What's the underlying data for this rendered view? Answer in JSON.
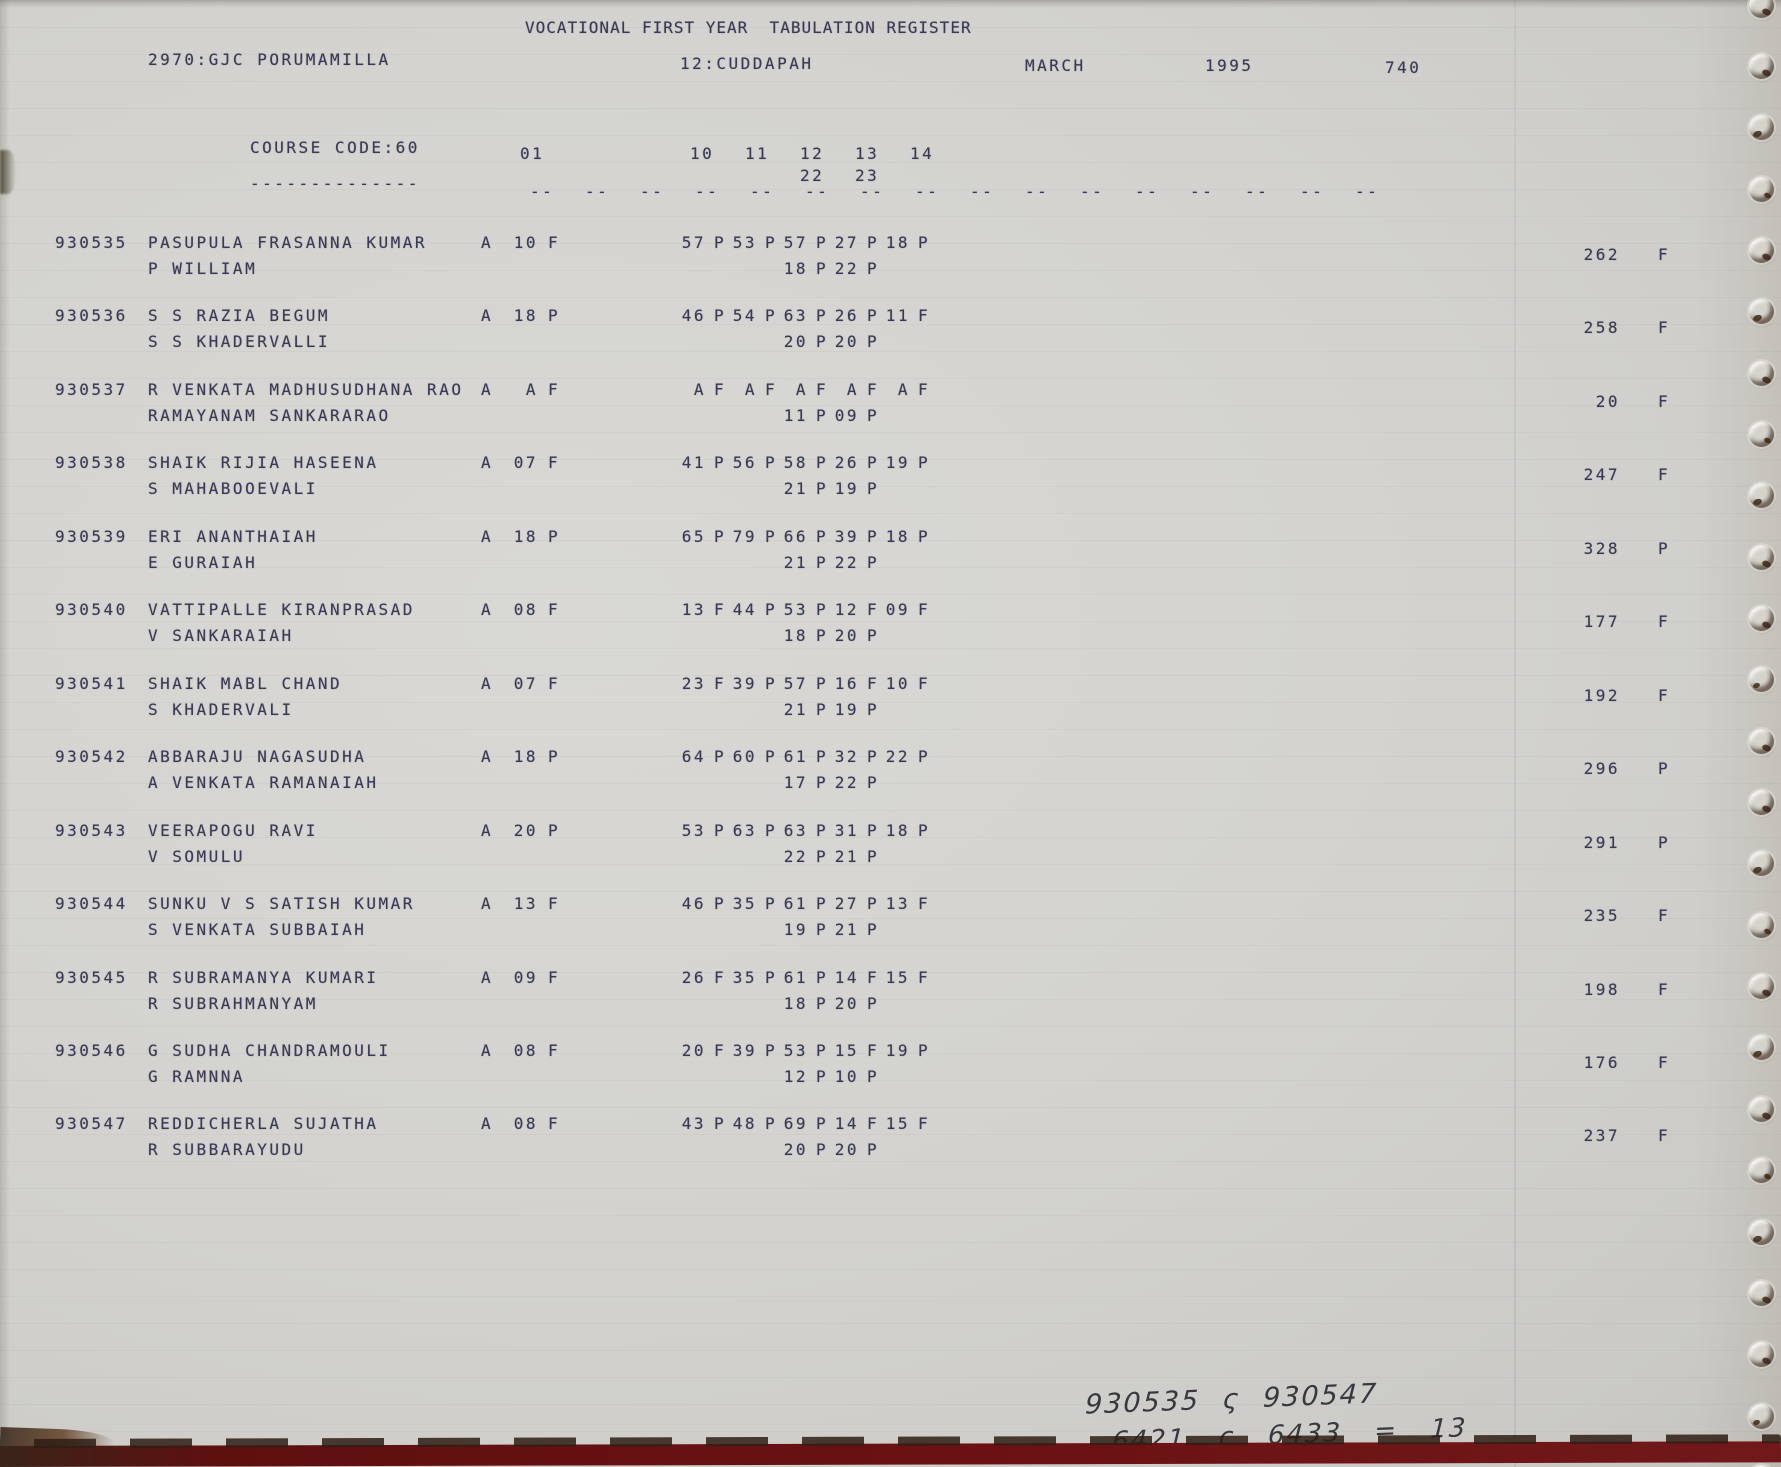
{
  "page": {
    "title": "VOCATIONAL FIRST YEAR  TABULATION REGISTER",
    "college": "2970:GJC PORUMAMILLA",
    "district": "12:CUDDAPAH",
    "month": "MARCH",
    "year": "1995",
    "page_number": "740"
  },
  "course": {
    "label": "COURSE CODE:60",
    "underline": "--------------",
    "columns": [
      "01",
      "10",
      "11",
      "12",
      "13",
      "14"
    ],
    "sub_columns": [
      "22",
      "23"
    ],
    "ruler_dashes": [
      "--",
      "--",
      "--",
      "--",
      "--",
      "--",
      "--",
      "--",
      "--",
      "--",
      "--",
      "--",
      "--",
      "--",
      "--",
      "--"
    ]
  },
  "register": {
    "rows": [
      {
        "reg_no": "930535",
        "name": "PASUPULA FRASANNA KUMAR",
        "father_name": "P WILLIAM",
        "attendance": "A",
        "first_subject": {
          "marks": "10",
          "result": "F"
        },
        "subjects_line1": [
          [
            "57",
            "P"
          ],
          [
            "53",
            "P"
          ],
          [
            "57",
            "P"
          ],
          [
            "27",
            "P"
          ],
          [
            "18",
            "P"
          ]
        ],
        "subjects_line2": [
          [
            "18",
            "P"
          ],
          [
            "22",
            "P"
          ]
        ],
        "total": "262",
        "overall_result": "F"
      },
      {
        "reg_no": "930536",
        "name": "S S RAZIA BEGUM",
        "father_name": "S S KHADERVALLI",
        "attendance": "A",
        "first_subject": {
          "marks": "18",
          "result": "P"
        },
        "subjects_line1": [
          [
            "46",
            "P"
          ],
          [
            "54",
            "P"
          ],
          [
            "63",
            "P"
          ],
          [
            "26",
            "P"
          ],
          [
            "11",
            "F"
          ]
        ],
        "subjects_line2": [
          [
            "20",
            "P"
          ],
          [
            "20",
            "P"
          ]
        ],
        "total": "258",
        "overall_result": "F"
      },
      {
        "reg_no": "930537",
        "name": "R VENKATA MADHUSUDHANA RAO",
        "father_name": "RAMAYANAM SANKARARAO",
        "attendance": "A",
        "first_subject": {
          "marks": "A",
          "result": "F"
        },
        "subjects_line1": [
          [
            "A",
            "F"
          ],
          [
            "A",
            "F"
          ],
          [
            "A",
            "F"
          ],
          [
            "A",
            "F"
          ],
          [
            "A",
            "F"
          ]
        ],
        "subjects_line2": [
          [
            "11",
            "P"
          ],
          [
            "09",
            "P"
          ]
        ],
        "total": "20",
        "overall_result": "F"
      },
      {
        "reg_no": "930538",
        "name": "SHAIK RIJIA HASEENA",
        "father_name": "S MAHABOOEVALI",
        "attendance": "A",
        "first_subject": {
          "marks": "07",
          "result": "F"
        },
        "subjects_line1": [
          [
            "41",
            "P"
          ],
          [
            "56",
            "P"
          ],
          [
            "58",
            "P"
          ],
          [
            "26",
            "P"
          ],
          [
            "19",
            "P"
          ]
        ],
        "subjects_line2": [
          [
            "21",
            "P"
          ],
          [
            "19",
            "P"
          ]
        ],
        "total": "247",
        "overall_result": "F"
      },
      {
        "reg_no": "930539",
        "name": "ERI ANANTHAIAH",
        "father_name": "E GURAIAH",
        "attendance": "A",
        "first_subject": {
          "marks": "18",
          "result": "P"
        },
        "subjects_line1": [
          [
            "65",
            "P"
          ],
          [
            "79",
            "P"
          ],
          [
            "66",
            "P"
          ],
          [
            "39",
            "P"
          ],
          [
            "18",
            "P"
          ]
        ],
        "subjects_line2": [
          [
            "21",
            "P"
          ],
          [
            "22",
            "P"
          ]
        ],
        "total": "328",
        "overall_result": "P"
      },
      {
        "reg_no": "930540",
        "name": "VATTIPALLE KIRANPRASAD",
        "father_name": "V SANKARAIAH",
        "attendance": "A",
        "first_subject": {
          "marks": "08",
          "result": "F"
        },
        "subjects_line1": [
          [
            "13",
            "F"
          ],
          [
            "44",
            "P"
          ],
          [
            "53",
            "P"
          ],
          [
            "12",
            "F"
          ],
          [
            "09",
            "F"
          ]
        ],
        "subjects_line2": [
          [
            "18",
            "P"
          ],
          [
            "20",
            "P"
          ]
        ],
        "total": "177",
        "overall_result": "F"
      },
      {
        "reg_no": "930541",
        "name": "SHAIK MABL CHAND",
        "father_name": "S KHADERVALI",
        "attendance": "A",
        "first_subject": {
          "marks": "07",
          "result": "F"
        },
        "subjects_line1": [
          [
            "23",
            "F"
          ],
          [
            "39",
            "P"
          ],
          [
            "57",
            "P"
          ],
          [
            "16",
            "F"
          ],
          [
            "10",
            "F"
          ]
        ],
        "subjects_line2": [
          [
            "21",
            "P"
          ],
          [
            "19",
            "P"
          ]
        ],
        "total": "192",
        "overall_result": "F"
      },
      {
        "reg_no": "930542",
        "name": "ABBARAJU NAGASUDHA",
        "father_name": "A VENKATA RAMANAIAH",
        "attendance": "A",
        "first_subject": {
          "marks": "18",
          "result": "P"
        },
        "subjects_line1": [
          [
            "64",
            "P"
          ],
          [
            "60",
            "P"
          ],
          [
            "61",
            "P"
          ],
          [
            "32",
            "P"
          ],
          [
            "22",
            "P"
          ]
        ],
        "subjects_line2": [
          [
            "17",
            "P"
          ],
          [
            "22",
            "P"
          ]
        ],
        "total": "296",
        "overall_result": "P"
      },
      {
        "reg_no": "930543",
        "name": "VEERAPOGU RAVI",
        "father_name": "V SOMULU",
        "attendance": "A",
        "first_subject": {
          "marks": "20",
          "result": "P"
        },
        "subjects_line1": [
          [
            "53",
            "P"
          ],
          [
            "63",
            "P"
          ],
          [
            "63",
            "P"
          ],
          [
            "31",
            "P"
          ],
          [
            "18",
            "P"
          ]
        ],
        "subjects_line2": [
          [
            "22",
            "P"
          ],
          [
            "21",
            "P"
          ]
        ],
        "total": "291",
        "overall_result": "P"
      },
      {
        "reg_no": "930544",
        "name": "SUNKU V S SATISH KUMAR",
        "father_name": "S VENKATA SUBBAIAH",
        "attendance": "A",
        "first_subject": {
          "marks": "13",
          "result": "F"
        },
        "subjects_line1": [
          [
            "46",
            "P"
          ],
          [
            "35",
            "P"
          ],
          [
            "61",
            "P"
          ],
          [
            "27",
            "P"
          ],
          [
            "13",
            "F"
          ]
        ],
        "subjects_line2": [
          [
            "19",
            "P"
          ],
          [
            "21",
            "P"
          ]
        ],
        "total": "235",
        "overall_result": "F"
      },
      {
        "reg_no": "930545",
        "name": "R SUBRAMANYA KUMARI",
        "father_name": "R SUBRAHMANYAM",
        "attendance": "A",
        "first_subject": {
          "marks": "09",
          "result": "F"
        },
        "subjects_line1": [
          [
            "26",
            "F"
          ],
          [
            "35",
            "P"
          ],
          [
            "61",
            "P"
          ],
          [
            "14",
            "F"
          ],
          [
            "15",
            "F"
          ]
        ],
        "subjects_line2": [
          [
            "18",
            "P"
          ],
          [
            "20",
            "P"
          ]
        ],
        "total": "198",
        "overall_result": "F"
      },
      {
        "reg_no": "930546",
        "name": "G SUDHA CHANDRAMOULI",
        "father_name": "G RAMNNA",
        "attendance": "A",
        "first_subject": {
          "marks": "08",
          "result": "F"
        },
        "subjects_line1": [
          [
            "20",
            "F"
          ],
          [
            "39",
            "P"
          ],
          [
            "53",
            "P"
          ],
          [
            "15",
            "F"
          ],
          [
            "19",
            "P"
          ]
        ],
        "subjects_line2": [
          [
            "12",
            "P"
          ],
          [
            "10",
            "P"
          ]
        ],
        "total": "176",
        "overall_result": "F"
      },
      {
        "reg_no": "930547",
        "name": "REDDICHERLA SUJATHA",
        "father_name": "R SUBBARAYUDU",
        "attendance": "A",
        "first_subject": {
          "marks": "08",
          "result": "F"
        },
        "subjects_line1": [
          [
            "43",
            "P"
          ],
          [
            "48",
            "P"
          ],
          [
            "69",
            "P"
          ],
          [
            "14",
            "F"
          ],
          [
            "15",
            "F"
          ]
        ],
        "subjects_line2": [
          [
            "20",
            "P"
          ],
          [
            "20",
            "P"
          ]
        ],
        "total": "237",
        "overall_result": "F"
      }
    ]
  },
  "handwritten_note": {
    "line1": "930535 ς 930547",
    "line2": "6421 ς 6433 = 13"
  },
  "colors": {
    "ink": "#3a3a56",
    "paper": "#d3d2ce",
    "binder_strip": "#6b1113"
  }
}
